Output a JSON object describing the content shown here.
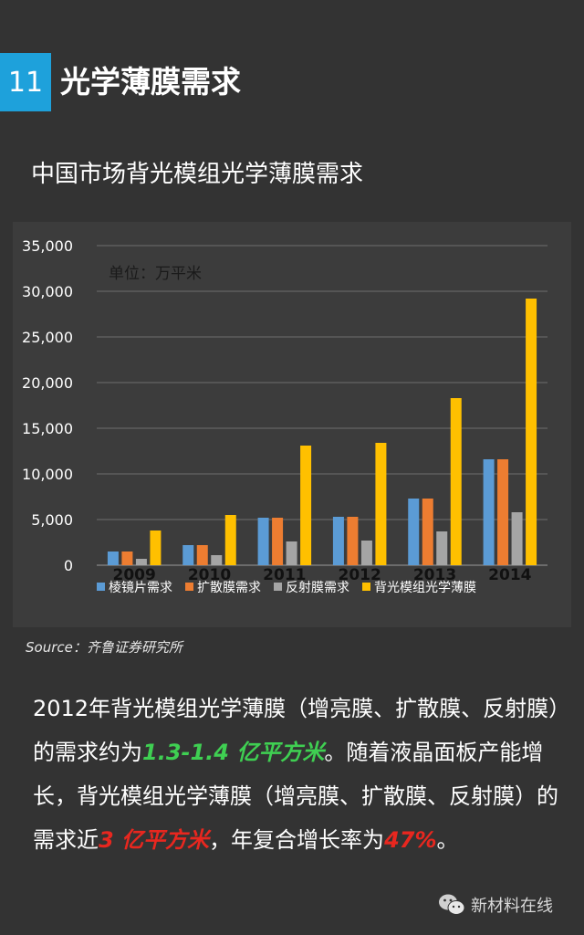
{
  "header": {
    "number": "11",
    "title": "光学薄膜需求"
  },
  "subtitle": "中国市场背光模组光学薄膜需求",
  "chart_data": {
    "type": "bar",
    "unit_label": "单位：万平米",
    "categories": [
      "2009",
      "2010",
      "2011",
      "2012",
      "2013",
      "2014"
    ],
    "series": [
      {
        "name": "棱镜片需求",
        "color": "#5b9bd5",
        "values": [
          1500,
          2200,
          5200,
          5300,
          7300,
          11600
        ]
      },
      {
        "name": "扩散膜需求",
        "color": "#ed7d31",
        "values": [
          1500,
          2200,
          5200,
          5300,
          7300,
          11600
        ]
      },
      {
        "name": "反射膜需求",
        "color": "#a5a5a5",
        "values": [
          700,
          1100,
          2600,
          2700,
          3700,
          5800
        ]
      },
      {
        "name": "背光模组光学薄膜",
        "color": "#ffc000",
        "values": [
          3800,
          5500,
          13100,
          13400,
          18300,
          29200
        ]
      }
    ],
    "yticks": [
      "0",
      "5,000",
      "10,000",
      "15,000",
      "20,000",
      "25,000",
      "30,000",
      "35,000"
    ],
    "ylim": [
      0,
      35000
    ],
    "grid": true,
    "legend": "bottom"
  },
  "source": "Source：齐鲁证券研究所",
  "paragraph": {
    "p1": "2012年背光模组光学薄膜（增亮膜、扩散膜、反射膜）的需求约为",
    "h1": "1.3-1.4 亿平方米",
    "p2": "。随着液晶面板产能增长，背光模组光学薄膜（增亮膜、扩散膜、反射膜）的需求近",
    "h2": "3 亿平方米",
    "p3": "，年复合增长率为",
    "h3": "47%",
    "p4": "。"
  },
  "watermark": {
    "text": "新材料在线",
    "icon": "wechat-icon"
  }
}
